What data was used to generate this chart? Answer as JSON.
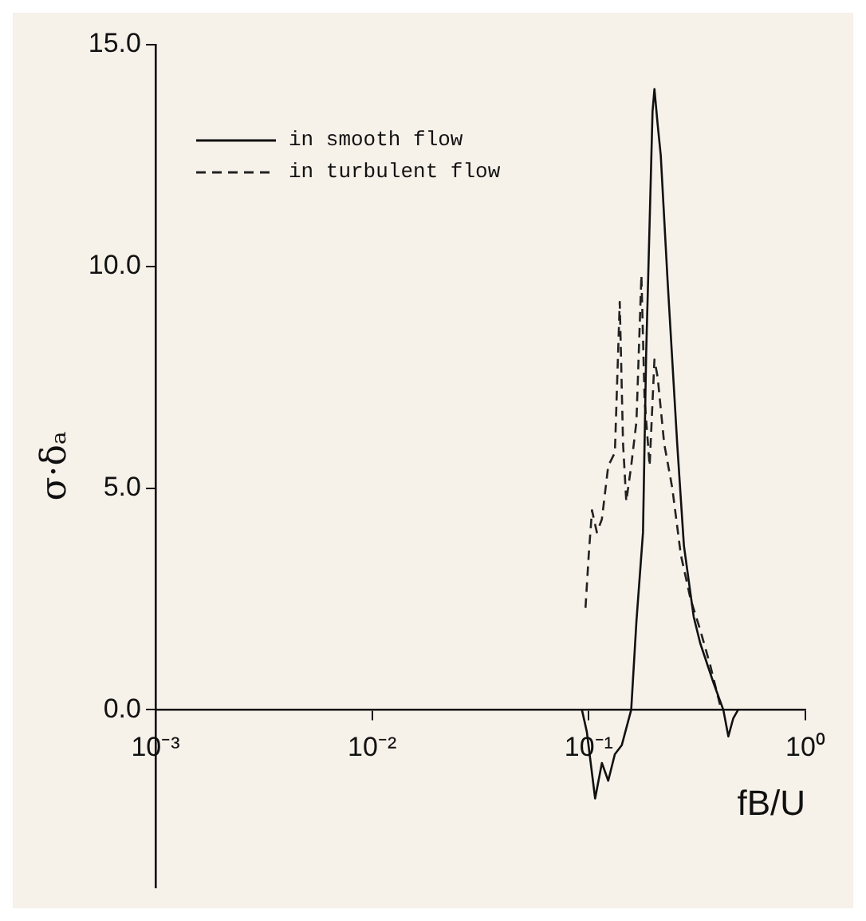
{
  "chart_data": {
    "type": "line",
    "xlabel": "fB/U",
    "ylabel": "σ·δₐ",
    "log": "x",
    "xlim": [
      0.001,
      1
    ],
    "xticks": [
      {
        "value": 0.001,
        "label": "10⁻³"
      },
      {
        "value": 0.01,
        "label": "10⁻²"
      },
      {
        "value": 0.1,
        "label": "10⁻¹"
      },
      {
        "value": 1,
        "label": "10⁰"
      }
    ],
    "ylim": [
      -4,
      15
    ],
    "yticks": [
      {
        "value": 0,
        "label": "0.0"
      },
      {
        "value": 5,
        "label": "5.0"
      },
      {
        "value": 10,
        "label": "10.0"
      },
      {
        "value": 15,
        "label": "15.0"
      }
    ],
    "grid": false,
    "legend": "top left",
    "marker": "none",
    "series": [
      {
        "name": "in smooth flow",
        "color": "#111111",
        "line_style": "solid",
        "x": [
          0.093,
          0.098,
          0.107,
          0.115,
          0.123,
          0.132,
          0.142,
          0.157,
          0.166,
          0.178,
          0.184,
          0.191,
          0.197,
          0.201,
          0.208,
          0.215,
          0.231,
          0.256,
          0.275,
          0.305,
          0.327,
          0.377,
          0.418,
          0.441,
          0.464,
          0.489
        ],
        "values": [
          0,
          -0.5,
          -2.0,
          -1.2,
          -1.6,
          -1.0,
          -0.8,
          0,
          2.0,
          4.0,
          8.0,
          11.0,
          13.5,
          14.0,
          13.2,
          12.5,
          9.7,
          6.0,
          3.7,
          2.1,
          1.5,
          0.6,
          0,
          -0.6,
          -0.2,
          0
        ]
      },
      {
        "name": "in turbulent flow",
        "color": "#222222",
        "line_style": "dashed",
        "x": [
          0.0966,
          0.1,
          0.1035,
          0.109,
          0.115,
          0.123,
          0.132,
          0.139,
          0.144,
          0.149,
          0.157,
          0.166,
          0.175,
          0.181,
          0.191,
          0.201,
          0.208,
          0.223,
          0.243,
          0.266,
          0.295,
          0.327,
          0.364,
          0.404
        ],
        "values": [
          2.3,
          3.5,
          4.5,
          4.0,
          4.3,
          5.5,
          5.8,
          9.2,
          6.0,
          4.7,
          5.5,
          6.5,
          9.8,
          7.0,
          5.5,
          7.9,
          7.5,
          6.0,
          5.0,
          3.5,
          2.5,
          1.8,
          1.0,
          0.1
        ]
      }
    ]
  }
}
